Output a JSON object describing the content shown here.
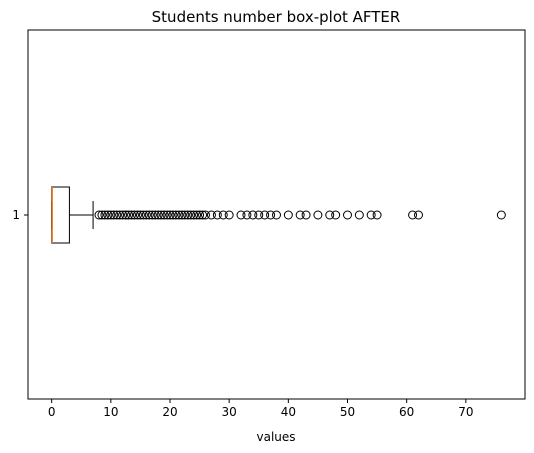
{
  "chart_data": {
    "type": "box",
    "orientation": "horizontal",
    "title": "Students number box-plot AFTER",
    "xlabel": "values",
    "ylabel": "",
    "xlim": [
      -4,
      80
    ],
    "xticks": [
      0,
      10,
      20,
      30,
      40,
      50,
      60,
      70
    ],
    "yticks": [
      "1"
    ],
    "grid": false,
    "series": [
      {
        "label": "1",
        "whisker_low": 0,
        "q1": 0,
        "median": 0,
        "q3": 3,
        "whisker_high": 7,
        "outliers": [
          8,
          8.5,
          9,
          9.5,
          10,
          10.5,
          11,
          11.5,
          12,
          12.5,
          13,
          13.5,
          14,
          14.5,
          15,
          15.5,
          16,
          16.5,
          17,
          17.5,
          18,
          18.5,
          19,
          19.5,
          20,
          20.5,
          21,
          21.5,
          22,
          22.5,
          23,
          23.5,
          24,
          24.5,
          25,
          25.5,
          26,
          27,
          28,
          29,
          30,
          32,
          33,
          34,
          35,
          36,
          37,
          38,
          40,
          42,
          43,
          45,
          47,
          48,
          50,
          52,
          54,
          55,
          61,
          62,
          76
        ]
      }
    ],
    "colors": {
      "box": "#000000",
      "median": "#f08030",
      "outlier_edge": "#000000"
    }
  }
}
